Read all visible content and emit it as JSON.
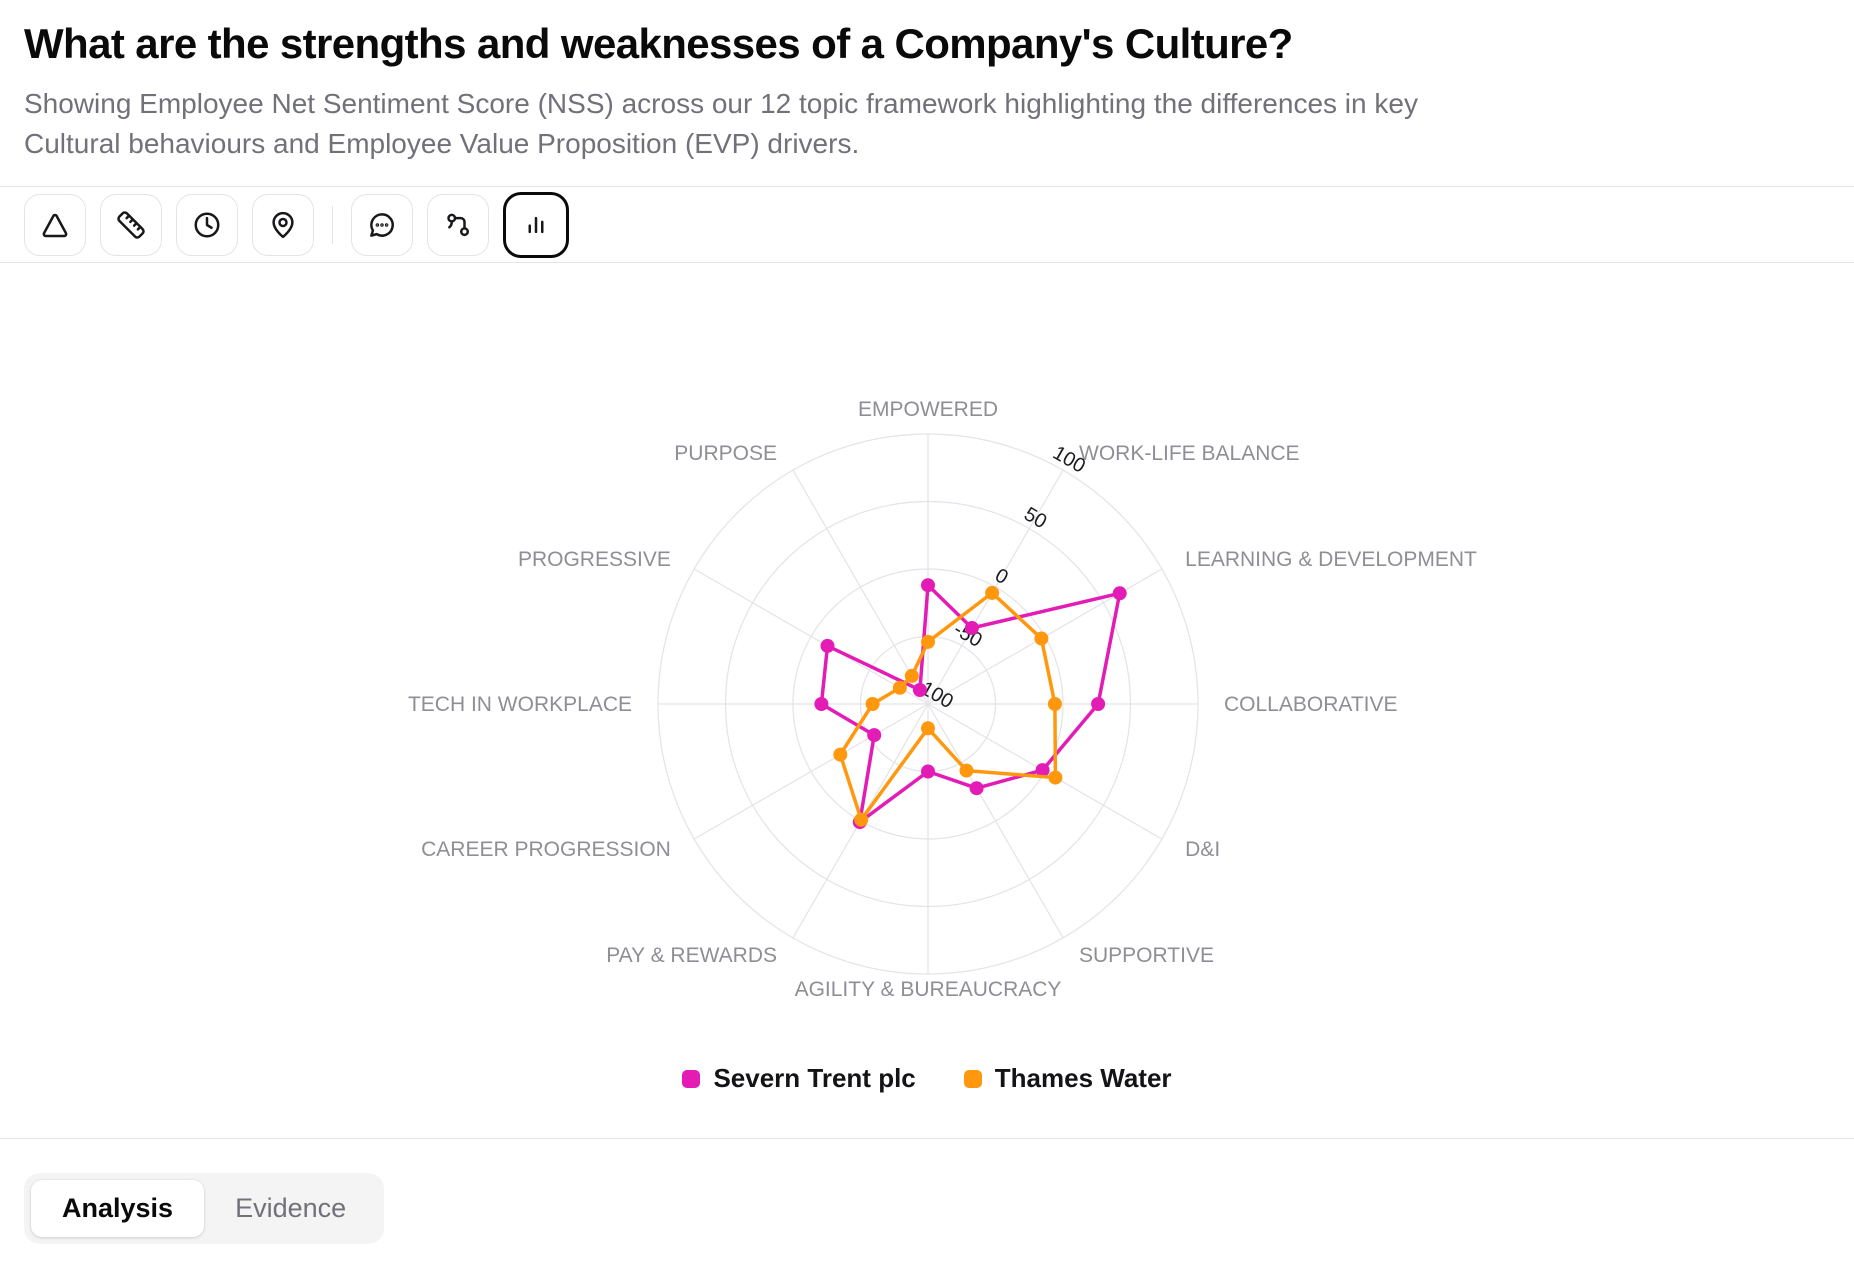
{
  "header": {
    "title": "What are the strengths and weaknesses of a Company's Culture?",
    "subtitle": "Showing Employee Net Sentiment Score (NSS) across our 12 topic framework highlighting the differences in key Cultural behaviours and Employee Value Proposition (EVP) drivers."
  },
  "toolbar": {
    "tools": [
      {
        "icon": "triangle-icon",
        "selected": false
      },
      {
        "icon": "ruler-icon",
        "selected": false
      },
      {
        "icon": "clock-icon",
        "selected": false
      },
      {
        "icon": "map-pin-icon",
        "selected": false
      },
      {
        "icon": "chat-icon",
        "selected": false
      },
      {
        "icon": "route-icon",
        "selected": false
      },
      {
        "icon": "bar-chart-icon",
        "selected": true
      }
    ]
  },
  "chart_data": {
    "type": "radar",
    "categories": [
      "EMPOWERED",
      "WORK-LIFE BALANCE",
      "LEARNING & DEVELOPMENT",
      "COLLABORATIVE",
      "D&I",
      "SUPPORTIVE",
      "AGILITY & BUREAUCRACY",
      "PAY & REWARDS",
      "CAREER PROGRESSION",
      "TECH IN WORKPLACE",
      "PROGRESSIVE",
      "PURPOSE"
    ],
    "series": [
      {
        "name": "Severn Trent plc",
        "color": "#e31cb5",
        "values": [
          -12,
          -35,
          64,
          26,
          -2,
          -28,
          -50,
          1,
          -54,
          -21,
          -14,
          -88
        ]
      },
      {
        "name": "Thames Water",
        "color": "#ff980e",
        "values": [
          -54,
          -5,
          -3,
          -6,
          9,
          -43,
          -82,
          -1,
          -25,
          -59,
          -76,
          -76
        ]
      }
    ],
    "range": [
      -100,
      100
    ],
    "radial_ticks": [
      100,
      50,
      0,
      -50,
      -100
    ],
    "tick_axis_angle_deg": 30,
    "tick_label_rotation_deg": 30,
    "grid": true,
    "legend_position": "bottom"
  },
  "tabs": [
    {
      "label": "Analysis",
      "active": true
    },
    {
      "label": "Evidence",
      "active": false
    }
  ]
}
